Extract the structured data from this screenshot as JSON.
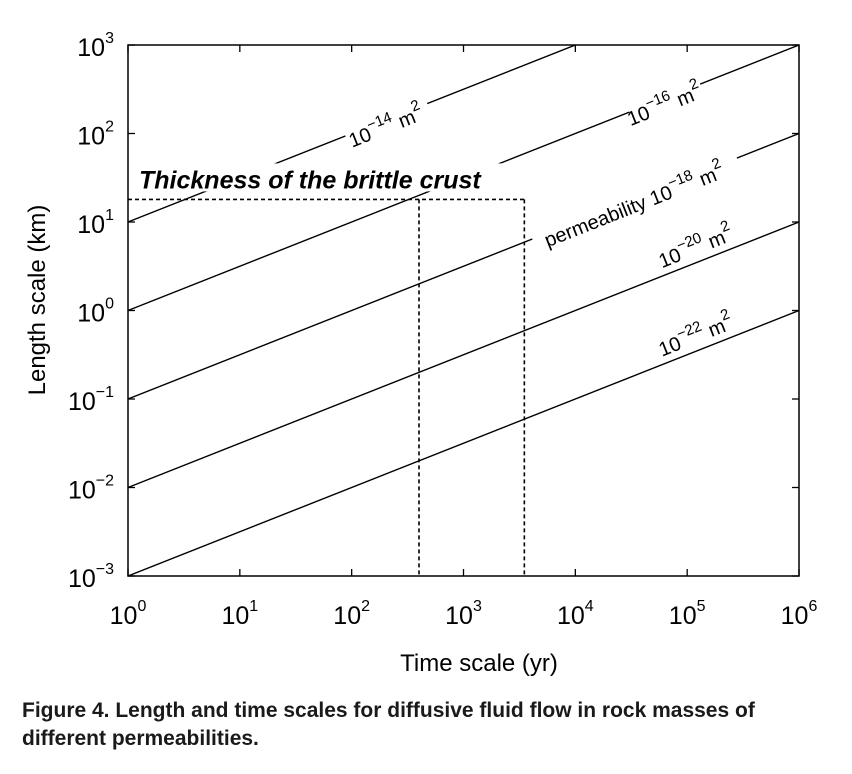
{
  "chart_data": {
    "type": "line",
    "title": "",
    "xlabel": "Time scale (yr)",
    "ylabel": "Length scale (km)",
    "xscale": "log",
    "yscale": "log",
    "xlim": [
      1,
      1000000
    ],
    "ylim": [
      0.001,
      1000
    ],
    "grid": false,
    "x_ticks": [
      {
        "base": "10",
        "exp": "0",
        "value": 1
      },
      {
        "base": "10",
        "exp": "1",
        "value": 10
      },
      {
        "base": "10",
        "exp": "2",
        "value": 100
      },
      {
        "base": "10",
        "exp": "3",
        "value": 1000
      },
      {
        "base": "10",
        "exp": "4",
        "value": 10000
      },
      {
        "base": "10",
        "exp": "5",
        "value": 100000
      },
      {
        "base": "10",
        "exp": "6",
        "value": 1000000
      }
    ],
    "y_ticks": [
      {
        "base": "10",
        "exp": "−3",
        "value": 0.001
      },
      {
        "base": "10",
        "exp": "−2",
        "value": 0.01
      },
      {
        "base": "10",
        "exp": "−1",
        "value": 0.1
      },
      {
        "base": "10",
        "exp": "0",
        "value": 1
      },
      {
        "base": "10",
        "exp": "1",
        "value": 10
      },
      {
        "base": "10",
        "exp": "2",
        "value": 100
      },
      {
        "base": "10",
        "exp": "3",
        "value": 1000
      }
    ],
    "series": [
      {
        "prefix": "",
        "base": "10",
        "exp": "−14",
        "unit": "m",
        "unit_exp": "2",
        "x": [
          1,
          1000000
        ],
        "y": [
          10,
          10000
        ]
      },
      {
        "prefix": "",
        "base": "10",
        "exp": "−16",
        "unit": "m",
        "unit_exp": "2",
        "x": [
          1,
          1000000
        ],
        "y": [
          1,
          1000
        ]
      },
      {
        "prefix": "permeability ",
        "base": "10",
        "exp": "−18",
        "unit": "m",
        "unit_exp": "2",
        "x": [
          1,
          1000000
        ],
        "y": [
          0.1,
          100
        ]
      },
      {
        "prefix": "",
        "base": "10",
        "exp": "−20",
        "unit": "m",
        "unit_exp": "2",
        "x": [
          1,
          1000000
        ],
        "y": [
          0.01,
          10
        ]
      },
      {
        "prefix": "",
        "base": "10",
        "exp": "−22",
        "unit": "m",
        "unit_exp": "2",
        "x": [
          1,
          1000000
        ],
        "y": [
          0.001,
          1
        ]
      }
    ],
    "annotations": [
      {
        "text": "Thickness of the brittle crust",
        "y": 18
      },
      {
        "text": "",
        "x": 400,
        "y_top": 18
      },
      {
        "text": "",
        "x": 3500,
        "y_top": 18
      }
    ]
  },
  "caption": "Figure 4. Length and time scales for diffusive fluid flow in rock masses of different permeabilities."
}
